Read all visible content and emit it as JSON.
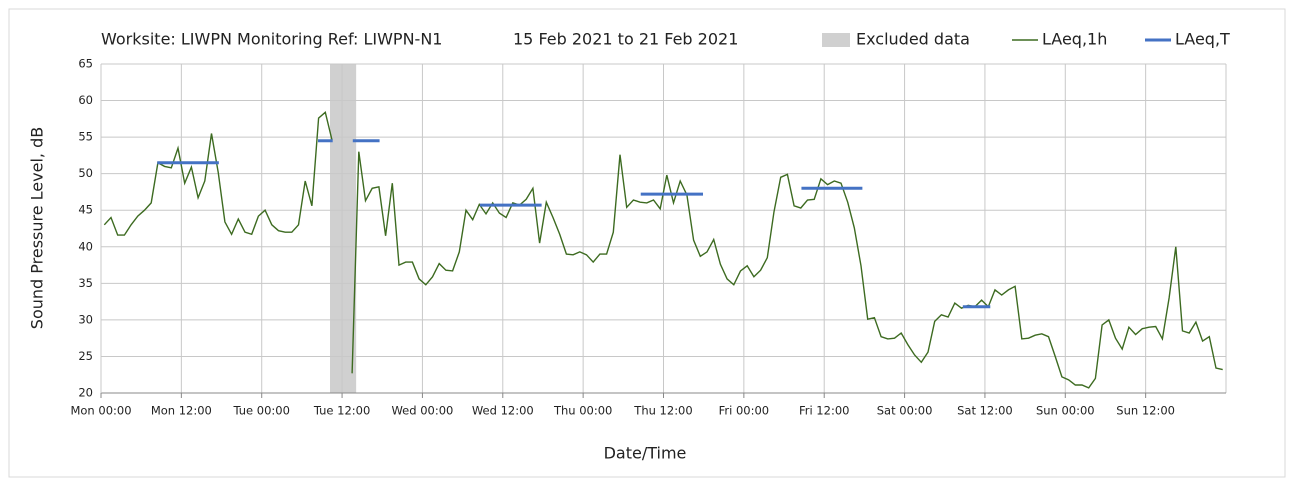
{
  "chart_data": {
    "type": "line",
    "title": "Worksite: LIWPN  Monitoring Ref: LIWPN-N1",
    "subtitle": "15 Feb 2021 to 21 Feb 2021",
    "x_label": "Date/Time",
    "y_label": "Sound Pressure Level, dB",
    "xlim": [
      0,
      168
    ],
    "xticks": [
      {
        "value": 0,
        "label": "Mon 00:00"
      },
      {
        "value": 12,
        "label": "Mon 12:00"
      },
      {
        "value": 24,
        "label": "Tue 00:00"
      },
      {
        "value": 36,
        "label": "Tue 12:00"
      },
      {
        "value": 48,
        "label": "Wed 00:00"
      },
      {
        "value": 60,
        "label": "Wed 12:00"
      },
      {
        "value": 72,
        "label": "Thu 00:00"
      },
      {
        "value": 84,
        "label": "Thu 12:00"
      },
      {
        "value": 96,
        "label": "Fri 00:00"
      },
      {
        "value": 108,
        "label": "Fri 12:00"
      },
      {
        "value": 120,
        "label": "Sat 00:00"
      },
      {
        "value": 132,
        "label": "Sat 12:00"
      },
      {
        "value": 144,
        "label": "Sun 00:00"
      },
      {
        "value": 156,
        "label": "Sun 12:00"
      }
    ],
    "ylim": [
      20,
      65
    ],
    "yticks": [
      20,
      25,
      30,
      35,
      40,
      45,
      50,
      55,
      60,
      65
    ],
    "grid": true,
    "excluded": {
      "name": "Excluded data",
      "color": "#d0d0d0",
      "start": 34.2,
      "end": 38.1
    },
    "series": [
      {
        "name": "LAeq,1h",
        "color": "#3d6b21",
        "x": [
          0.5,
          1.5,
          2.5,
          3.5,
          4.5,
          5.5,
          6.5,
          7.5,
          8.5,
          9.5,
          10.5,
          11.5,
          12.5,
          13.5,
          14.5,
          15.5,
          16.5,
          17.5,
          18.5,
          19.5,
          20.5,
          21.5,
          22.5,
          23.5,
          24.5,
          25.5,
          26.5,
          27.5,
          28.5,
          29.5,
          30.5,
          31.5,
          32.5,
          33.5,
          34.5,
          35.5,
          36.5,
          37.5,
          38.5,
          39.5,
          40.5,
          41.5,
          42.5,
          43.5,
          44.5,
          45.5,
          46.5,
          47.5,
          48.5,
          49.5,
          50.5,
          51.5,
          52.5,
          53.5,
          54.5,
          55.5,
          56.5,
          57.5,
          58.5,
          59.5,
          60.5,
          61.5,
          62.5,
          63.5,
          64.5,
          65.5,
          66.5,
          67.5,
          68.5,
          69.5,
          70.5,
          71.5,
          72.5,
          73.5,
          74.5,
          75.5,
          76.5,
          77.5,
          78.5,
          79.5,
          80.5,
          81.5,
          82.5,
          83.5,
          84.5,
          85.5,
          86.5,
          87.5,
          88.5,
          89.5,
          90.5,
          91.5,
          92.5,
          93.5,
          94.5,
          95.5,
          96.5,
          97.5,
          98.5,
          99.5,
          100.5,
          101.5,
          102.5,
          103.5,
          104.5,
          105.5,
          106.5,
          107.5,
          108.5,
          109.5,
          110.5,
          111.5,
          112.5,
          113.5,
          114.5,
          115.5,
          116.5,
          117.5,
          118.5,
          119.5,
          120.5,
          121.5,
          122.5,
          123.5,
          124.5,
          125.5,
          126.5,
          127.5,
          128.5,
          129.5,
          130.5,
          131.5,
          132.5,
          133.5,
          134.5,
          135.5,
          136.5,
          137.5,
          138.5,
          139.5,
          140.5,
          141.5,
          142.5,
          143.5,
          144.5,
          145.5,
          146.5,
          147.5,
          148.5,
          149.5,
          150.5,
          151.5,
          152.5,
          153.5,
          154.5,
          155.5,
          156.5,
          157.5,
          158.5,
          159.5,
          160.5,
          161.5,
          162.5,
          163.5,
          164.5,
          165.5,
          166.5,
          167.5
        ],
        "values": [
          43,
          44,
          41.6,
          41.6,
          43,
          44.2,
          45,
          46,
          51.5,
          51,
          50.8,
          53.5,
          48.7,
          50.9,
          46.7,
          49,
          55.5,
          50.2,
          43.4,
          41.7,
          43.8,
          42,
          41.7,
          44.2,
          45,
          43,
          42.2,
          42,
          42,
          43,
          49,
          45.6,
          57.6,
          58.4,
          54.6,
          null,
          null,
          22.7,
          53,
          46.3,
          48,
          48.2,
          41.5,
          48.7,
          37.5,
          37.9,
          37.9,
          35.6,
          34.8,
          35.9,
          37.7,
          36.8,
          36.7,
          39.3,
          45,
          43.7,
          45.8,
          44.5,
          46,
          44.6,
          44,
          46,
          45.7,
          46.5,
          48,
          40.5,
          46.1,
          44,
          41.7,
          39,
          38.9,
          39.3,
          38.9,
          37.9,
          39,
          39,
          42,
          52.6,
          45.4,
          46.4,
          46.1,
          46,
          46.4,
          45.2,
          49.8,
          46,
          49,
          47.1,
          40.9,
          38.7,
          39.3,
          41,
          37.6,
          35.6,
          34.8,
          36.7,
          37.4,
          35.9,
          36.8,
          38.5,
          44.8,
          49.5,
          49.9,
          45.6,
          45.3,
          46.4,
          46.5,
          49.3,
          48.5,
          49,
          48.7,
          46.1,
          42.6,
          37.4,
          30.1,
          30.3,
          27.7,
          27.4,
          27.5,
          28.2,
          26.6,
          25.2,
          24.2,
          25.6,
          29.8,
          30.7,
          30.4,
          32.3,
          31.6,
          32,
          31.8,
          32.7,
          31.8,
          34.1,
          33.4,
          34.1,
          34.6,
          27.4,
          27.5,
          27.9,
          28.1,
          27.7,
          25,
          22.2,
          21.8,
          21.1,
          21.1,
          20.7,
          22,
          29.3,
          30,
          27.5,
          26,
          29,
          28,
          28.8,
          29,
          29.1,
          27.4,
          33,
          40,
          28.5,
          28.2,
          29.7,
          27.1,
          27.7,
          23.4,
          23.2
        ]
      },
      {
        "name": "LAeq,T",
        "color": "#4472c4",
        "periods": [
          {
            "start": 8.4,
            "end": 17.6,
            "value": 51.5
          },
          {
            "start": 32.4,
            "end": 34.6,
            "value": 54.5
          },
          {
            "start": 37.6,
            "end": 41.6,
            "value": 54.5
          },
          {
            "start": 56.6,
            "end": 65.8,
            "value": 45.7
          },
          {
            "start": 80.6,
            "end": 89.9,
            "value": 47.2
          },
          {
            "start": 104.6,
            "end": 113.7,
            "value": 48
          },
          {
            "start": 128.7,
            "end": 132.8,
            "value": 31.8
          }
        ]
      }
    ]
  }
}
